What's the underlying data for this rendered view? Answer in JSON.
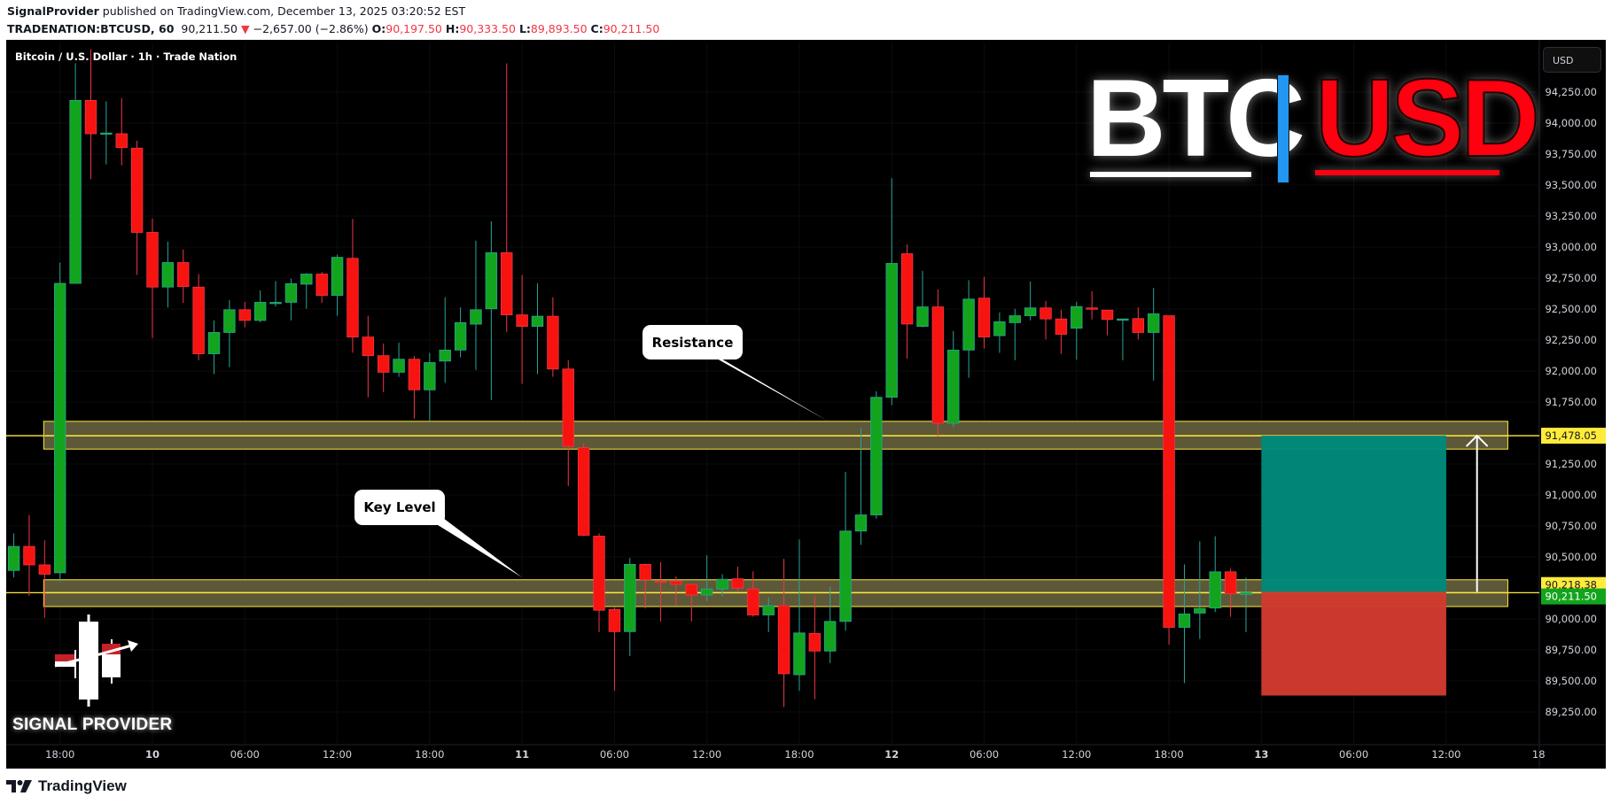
{
  "header": {
    "author": "SignalProvider",
    "published": "published on TradingView.com, December 13, 2025 03:20:52 EST",
    "symbol": "TRADENATION:BTCUSD, 60",
    "last": "90,211.50",
    "change": "−2,657.00 (−2.86%)",
    "o_label": "O:",
    "o": "90,197.50",
    "h_label": "H:",
    "h": "90,333.50",
    "l_label": "L:",
    "l": "89,893.50",
    "c_label": "C:",
    "c": "90,211.50"
  },
  "chart_title": "Bitcoin / U.S. Dollar · 1h · Trade Nation",
  "currency_button": "USD",
  "logo": {
    "left": "BTC",
    "right": "USD",
    "brand": "SIGNAL PROVIDER"
  },
  "footer_brand": "TradingView",
  "annotations": {
    "resistance": "Resistance",
    "key_level": "Key Level"
  },
  "colors": {
    "up": "#13a41e",
    "down": "#f7130f",
    "zone": "#625d3b",
    "zone_border": "#ffeb3b",
    "target": "#00897b",
    "stop": "#d13a2f",
    "background": "#000000"
  },
  "chart_data": {
    "type": "candlestick",
    "interval": "1h",
    "ylim": [
      89100,
      94600
    ],
    "price_ticks": [
      "94,250.00",
      "94,000.00",
      "93,750.00",
      "93,500.00",
      "93,250.00",
      "93,000.00",
      "92,750.00",
      "92,500.00",
      "92,250.00",
      "92,000.00",
      "91,750.00",
      "91,250.00",
      "91,000.00",
      "90,750.00",
      "90,500.00",
      "90,000.00",
      "89,750.00",
      "89,500.00",
      "89,250.00"
    ],
    "price_tick_values": [
      94250,
      94000,
      93750,
      93500,
      93250,
      93000,
      92750,
      92500,
      92250,
      92000,
      91750,
      91250,
      91000,
      90750,
      90500,
      90000,
      89750,
      89500,
      89250
    ],
    "time_ticks": [
      {
        "t": "2025-12-09T18:00",
        "label": "18:00",
        "bold": false
      },
      {
        "t": "2025-12-10T00:00",
        "label": "10",
        "bold": true
      },
      {
        "t": "2025-12-10T06:00",
        "label": "06:00",
        "bold": false
      },
      {
        "t": "2025-12-10T12:00",
        "label": "12:00",
        "bold": false
      },
      {
        "t": "2025-12-10T18:00",
        "label": "18:00",
        "bold": false
      },
      {
        "t": "2025-12-11T00:00",
        "label": "11",
        "bold": true
      },
      {
        "t": "2025-12-11T06:00",
        "label": "06:00",
        "bold": false
      },
      {
        "t": "2025-12-11T12:00",
        "label": "12:00",
        "bold": false
      },
      {
        "t": "2025-12-11T18:00",
        "label": "18:00",
        "bold": false
      },
      {
        "t": "2025-12-12T00:00",
        "label": "12",
        "bold": true
      },
      {
        "t": "2025-12-12T06:00",
        "label": "06:00",
        "bold": false
      },
      {
        "t": "2025-12-12T12:00",
        "label": "12:00",
        "bold": false
      },
      {
        "t": "2025-12-12T18:00",
        "label": "18:00",
        "bold": false
      },
      {
        "t": "2025-12-13T00:00",
        "label": "13",
        "bold": true
      },
      {
        "t": "2025-12-13T06:00",
        "label": "06:00",
        "bold": false
      },
      {
        "t": "2025-12-13T12:00",
        "label": "12:00",
        "bold": false
      },
      {
        "t": "2025-12-13T18:00",
        "label": "18",
        "bold": false
      }
    ],
    "levels": {
      "resistance": {
        "value": 91478.05,
        "label": "91,478.05",
        "zone": [
          91370,
          91594
        ],
        "from": "2025-12-09T17:00",
        "to": "2025-12-13T16:00"
      },
      "key_level": {
        "value": 90211.5,
        "label": "90,211.50",
        "zone": [
          90100,
          90316
        ],
        "from": "2025-12-09T17:00",
        "to": "2025-12-13T16:00"
      }
    },
    "position": {
      "entry": 90218.38,
      "entry_label": "90,218.38",
      "target": 91478.05,
      "stop": 89382,
      "from": "2025-12-13T00:00",
      "to": "2025-12-13T12:00",
      "arrow_at": "2025-12-13T14:00"
    },
    "columns": [
      "time",
      "open",
      "high",
      "low",
      "close"
    ],
    "candles": [
      [
        "2025-12-09T15:00",
        90391,
        90690,
        90335,
        90585
      ],
      [
        "2025-12-09T16:00",
        90585,
        90839,
        90186,
        90436
      ],
      [
        "2025-12-09T17:00",
        90436,
        90634,
        90010,
        90361
      ],
      [
        "2025-12-09T18:00",
        90372,
        92875,
        90298,
        92707
      ],
      [
        "2025-12-09T19:00",
        92707,
        94482,
        92707,
        94183
      ],
      [
        "2025-12-09T20:00",
        94183,
        94594,
        93548,
        93914
      ],
      [
        "2025-12-09T21:00",
        93914,
        94175,
        93667,
        93920
      ],
      [
        "2025-12-09T22:00",
        93914,
        94202,
        93660,
        93802
      ],
      [
        "2025-12-09T23:00",
        93798,
        93858,
        92775,
        93118
      ],
      [
        "2025-12-10T00:00",
        93118,
        93230,
        92266,
        92677
      ],
      [
        "2025-12-10T01:00",
        92677,
        93044,
        92513,
        92875
      ],
      [
        "2025-12-10T02:00",
        92875,
        92980,
        92550,
        92681
      ],
      [
        "2025-12-10T03:00",
        92677,
        92782,
        92087,
        92139
      ],
      [
        "2025-12-10T04:00",
        92139,
        92408,
        91975,
        92311
      ],
      [
        "2025-12-10T05:00",
        92311,
        92573,
        92031,
        92494
      ],
      [
        "2025-12-10T06:00",
        92494,
        92558,
        92352,
        92408
      ],
      [
        "2025-12-10T07:00",
        92408,
        92651,
        92393,
        92554
      ],
      [
        "2025-12-10T08:00",
        92550,
        92726,
        92520,
        92554
      ],
      [
        "2025-12-10T09:00",
        92554,
        92745,
        92408,
        92704
      ],
      [
        "2025-12-10T10:00",
        92700,
        92790,
        92502,
        92782
      ],
      [
        "2025-12-10T11:00",
        92782,
        92800,
        92550,
        92610
      ],
      [
        "2025-12-10T12:00",
        92610,
        92939,
        92446,
        92917
      ],
      [
        "2025-12-10T13:00",
        92909,
        93227,
        92147,
        92274
      ],
      [
        "2025-12-10T14:00",
        92274,
        92446,
        91788,
        92124
      ],
      [
        "2025-12-10T15:00",
        92124,
        92222,
        91829,
        91990
      ],
      [
        "2025-12-10T16:00",
        91990,
        92229,
        91953,
        92095
      ],
      [
        "2025-12-10T17:00",
        92095,
        92121,
        91616,
        91848
      ],
      [
        "2025-12-10T18:00",
        91848,
        92147,
        91594,
        92068
      ],
      [
        "2025-12-10T19:00",
        92080,
        92595,
        91904,
        92169
      ],
      [
        "2025-12-10T20:00",
        92169,
        92513,
        92110,
        92390
      ],
      [
        "2025-12-10T21:00",
        92378,
        93051,
        92009,
        92494
      ],
      [
        "2025-12-10T22:00",
        92502,
        93208,
        91766,
        92954
      ],
      [
        "2025-12-10T23:00",
        92954,
        94482,
        92315,
        92453
      ],
      [
        "2025-12-11T00:00",
        92453,
        92775,
        91897,
        92360
      ],
      [
        "2025-12-11T01:00",
        92360,
        92707,
        91975,
        92442
      ],
      [
        "2025-12-11T02:00",
        92442,
        92595,
        91953,
        92016
      ],
      [
        "2025-12-11T03:00",
        92016,
        92087,
        91071,
        91392
      ],
      [
        "2025-12-11T04:00",
        91381,
        91418,
        90668,
        90675
      ],
      [
        "2025-12-11T05:00",
        90668,
        90690,
        89894,
        90070
      ],
      [
        "2025-12-11T06:00",
        90077,
        90092,
        89420,
        89898
      ],
      [
        "2025-12-11T07:00",
        89898,
        90492,
        89700,
        90440
      ],
      [
        "2025-12-11T08:00",
        90440,
        90447,
        90085,
        90316
      ],
      [
        "2025-12-11T09:00",
        90305,
        90458,
        89980,
        90298
      ],
      [
        "2025-12-11T10:00",
        90305,
        90342,
        90103,
        90279
      ],
      [
        "2025-12-11T11:00",
        90279,
        90279,
        89980,
        90193
      ],
      [
        "2025-12-11T12:00",
        90193,
        90514,
        90144,
        90242
      ],
      [
        "2025-12-11T13:00",
        90242,
        90361,
        90182,
        90320
      ],
      [
        "2025-12-11T14:00",
        90324,
        90421,
        90215,
        90249
      ],
      [
        "2025-12-11T15:00",
        90242,
        90384,
        90017,
        90032
      ],
      [
        "2025-12-11T16:00",
        90032,
        90174,
        89894,
        90107
      ],
      [
        "2025-12-11T17:00",
        90107,
        90485,
        89289,
        89558
      ],
      [
        "2025-12-11T18:00",
        89550,
        90641,
        89420,
        89887
      ],
      [
        "2025-12-11T19:00",
        89883,
        90186,
        89352,
        89741
      ],
      [
        "2025-12-11T20:00",
        89741,
        90260,
        89644,
        89980
      ],
      [
        "2025-12-11T21:00",
        89980,
        91187,
        89905,
        90709
      ],
      [
        "2025-12-11T22:00",
        90709,
        91542,
        90597,
        90839
      ],
      [
        "2025-12-11T23:00",
        90839,
        91837,
        90809,
        91788
      ],
      [
        "2025-12-12T00:00",
        91788,
        93555,
        91725,
        92868
      ],
      [
        "2025-12-12T01:00",
        92946,
        93021,
        92098,
        92379
      ],
      [
        "2025-12-12T02:00",
        92360,
        92808,
        92353,
        92517
      ],
      [
        "2025-12-12T03:00",
        92517,
        92659,
        91474,
        91579
      ],
      [
        "2025-12-12T04:00",
        91579,
        92323,
        91549,
        92169
      ],
      [
        "2025-12-12T05:00",
        92169,
        92733,
        91945,
        92580
      ],
      [
        "2025-12-12T06:00",
        92588,
        92760,
        92181,
        92274
      ],
      [
        "2025-12-12T07:00",
        92285,
        92472,
        92147,
        92397
      ],
      [
        "2025-12-12T08:00",
        92390,
        92502,
        92087,
        92446
      ],
      [
        "2025-12-12T09:00",
        92446,
        92722,
        92408,
        92509
      ],
      [
        "2025-12-12T10:00",
        92509,
        92565,
        92255,
        92420
      ],
      [
        "2025-12-12T11:00",
        92420,
        92494,
        92139,
        92296
      ],
      [
        "2025-12-12T12:00",
        92345,
        92558,
        92091,
        92520
      ],
      [
        "2025-12-12T13:00",
        92509,
        92644,
        92416,
        92498
      ],
      [
        "2025-12-12T14:00",
        92491,
        92491,
        92289,
        92416
      ],
      [
        "2025-12-12T15:00",
        92416,
        92420,
        92087,
        92420
      ],
      [
        "2025-12-12T16:00",
        92423,
        92513,
        92255,
        92311
      ],
      [
        "2025-12-12T17:00",
        92311,
        92670,
        91923,
        92461
      ],
      [
        "2025-12-12T18:00",
        92446,
        92446,
        89793,
        89932
      ],
      [
        "2025-12-12T19:00",
        89932,
        90440,
        89483,
        90040
      ],
      [
        "2025-12-12T20:00",
        90047,
        90626,
        89838,
        90085
      ],
      [
        "2025-12-12T21:00",
        90088,
        90667,
        90055,
        90380
      ],
      [
        "2025-12-12T22:00",
        90380,
        90406,
        90017,
        90204
      ],
      [
        "2025-12-12T23:00",
        90197.5,
        90333.5,
        89893.5,
        90211.5
      ]
    ]
  }
}
